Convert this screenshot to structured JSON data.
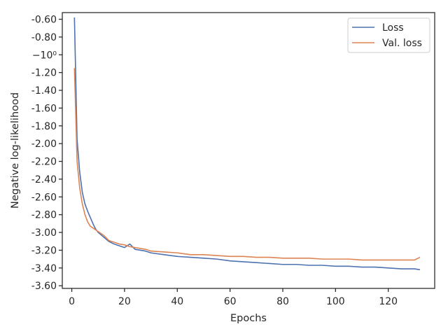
{
  "chart_data": {
    "type": "line",
    "title": "",
    "xlabel": "Epochs",
    "ylabel": "Negative log-likelihood",
    "xlim": [
      -3.6,
      137.6
    ],
    "ylim": [
      -3.63,
      -0.525
    ],
    "x_ticks": [
      0,
      20,
      40,
      60,
      80,
      100,
      120
    ],
    "y_ticks": [
      {
        "value": -0.6,
        "label": "-0.60"
      },
      {
        "value": -0.8,
        "label": "-0.80"
      },
      {
        "value": -1.0,
        "label": "−10⁰"
      },
      {
        "value": -1.2,
        "label": "-1.20"
      },
      {
        "value": -1.4,
        "label": "-1.40"
      },
      {
        "value": -1.6,
        "label": "-1.60"
      },
      {
        "value": -1.8,
        "label": "-1.80"
      },
      {
        "value": -2.0,
        "label": "-2.00"
      },
      {
        "value": -2.2,
        "label": "-2.20"
      },
      {
        "value": -2.4,
        "label": "-2.40"
      },
      {
        "value": -2.6,
        "label": "-2.60"
      },
      {
        "value": -2.8,
        "label": "-2.80"
      },
      {
        "value": -3.0,
        "label": "-3.00"
      },
      {
        "value": -3.2,
        "label": "-3.20"
      },
      {
        "value": -3.4,
        "label": "-3.40"
      },
      {
        "value": -3.6,
        "label": "-3.60"
      }
    ],
    "grid": false,
    "legend_position": "top-right",
    "series": [
      {
        "name": "Loss",
        "color": "#4c72b0",
        "x": [
          1,
          2,
          3,
          4,
          5,
          6,
          7,
          8,
          9,
          10,
          12,
          14,
          16,
          18,
          20,
          22,
          24,
          26,
          28,
          30,
          35,
          40,
          45,
          50,
          55,
          60,
          65,
          70,
          75,
          80,
          85,
          90,
          95,
          100,
          105,
          110,
          115,
          120,
          125,
          130,
          132
        ],
        "y": [
          -0.58,
          -1.95,
          -2.32,
          -2.55,
          -2.68,
          -2.76,
          -2.83,
          -2.9,
          -2.96,
          -3.0,
          -3.05,
          -3.1,
          -3.13,
          -3.15,
          -3.17,
          -3.13,
          -3.19,
          -3.2,
          -3.21,
          -3.23,
          -3.25,
          -3.27,
          -3.28,
          -3.29,
          -3.3,
          -3.32,
          -3.33,
          -3.34,
          -3.35,
          -3.36,
          -3.36,
          -3.37,
          -3.37,
          -3.38,
          -3.38,
          -3.39,
          -3.39,
          -3.4,
          -3.41,
          -3.41,
          -3.42
        ]
      },
      {
        "name": "Val. loss",
        "color": "#dd8452",
        "x": [
          1,
          2,
          3,
          4,
          5,
          6,
          7,
          8,
          9,
          10,
          12,
          14,
          16,
          18,
          20,
          22,
          24,
          26,
          28,
          30,
          35,
          40,
          45,
          50,
          55,
          60,
          65,
          70,
          75,
          80,
          85,
          90,
          95,
          100,
          105,
          110,
          115,
          120,
          125,
          130,
          132
        ],
        "y": [
          -1.15,
          -2.2,
          -2.5,
          -2.68,
          -2.8,
          -2.88,
          -2.93,
          -2.95,
          -2.97,
          -2.99,
          -3.03,
          -3.09,
          -3.11,
          -3.13,
          -3.14,
          -3.16,
          -3.17,
          -3.18,
          -3.19,
          -3.21,
          -3.22,
          -3.23,
          -3.25,
          -3.25,
          -3.26,
          -3.27,
          -3.27,
          -3.28,
          -3.28,
          -3.29,
          -3.29,
          -3.29,
          -3.3,
          -3.3,
          -3.3,
          -3.31,
          -3.31,
          -3.31,
          -3.31,
          -3.31,
          -3.28
        ]
      }
    ]
  }
}
